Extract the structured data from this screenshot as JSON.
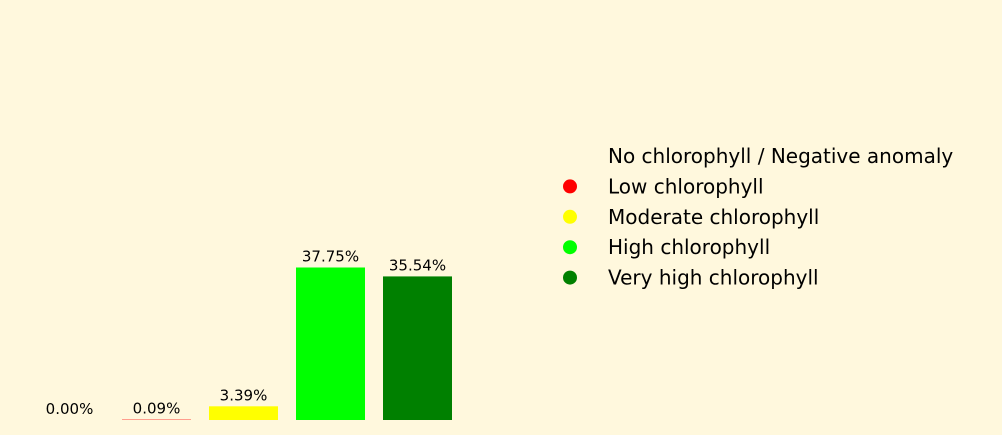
{
  "chart_data": {
    "type": "bar",
    "categories": [
      "No chlorophyll / Negative anomaly",
      "Low chlorophyll",
      "Moderate chlorophyll",
      "High chlorophyll",
      "Very high chlorophyll"
    ],
    "values": [
      0.0,
      0.09,
      3.39,
      37.75,
      35.54
    ],
    "data_labels": [
      "0.00%",
      "0.09%",
      "3.39%",
      "37.75%",
      "35.54%"
    ],
    "colors": [
      "#FFF8DD",
      "#FF0000",
      "#FFFF00",
      "#00FF00",
      "#008000"
    ],
    "background": "#FFF8DD",
    "ylim": [
      0,
      100
    ],
    "grid": false,
    "axes_visible": false,
    "legend": {
      "placement": "right",
      "marker": "circle-icon",
      "items": [
        {
          "label": "No chlorophyll / Negative anomaly",
          "color": "#FFF8DD"
        },
        {
          "label": "Low chlorophyll",
          "color": "#FF0000"
        },
        {
          "label": "Moderate chlorophyll",
          "color": "#FFFF00"
        },
        {
          "label": "High chlorophyll",
          "color": "#00FF00"
        },
        {
          "label": "Very high chlorophyll",
          "color": "#008000"
        }
      ]
    }
  }
}
